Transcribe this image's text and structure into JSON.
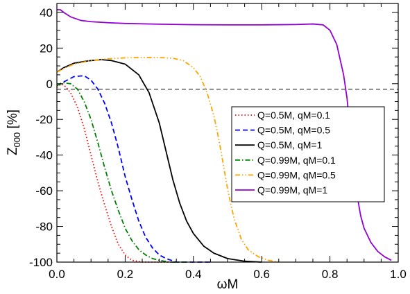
{
  "chart_data": {
    "type": "line",
    "title": "",
    "xlabel": "ωM",
    "ylabel": {
      "main": "Z",
      "sub": "000",
      "unit": " [%]"
    },
    "xlim": [
      0.0,
      1.0
    ],
    "ylim": [
      -100,
      45
    ],
    "x_ticks": [
      0.0,
      0.2,
      0.4,
      0.6,
      0.8,
      1.0
    ],
    "x_tick_labels": [
      "0.0",
      "0.2",
      "0.4",
      "0.6",
      "0.8",
      "1.0"
    ],
    "y_ticks": [
      40,
      20,
      0,
      -20,
      -40,
      -60,
      -80,
      -100
    ],
    "y_tick_labels": [
      "40",
      "20",
      "0",
      "-20",
      "-40",
      "-60",
      "-80",
      "-100"
    ],
    "grid": false,
    "legend_position": "center-right",
    "reference_line": {
      "y": -3,
      "style": "dashed",
      "color": "#000000"
    },
    "series": [
      {
        "name": "Q=0.5M, qM=0.1",
        "color": "#ff0000",
        "dash": "dotted",
        "x": [
          0.0,
          0.01,
          0.02,
          0.04,
          0.06,
          0.08,
          0.1,
          0.12,
          0.14,
          0.16,
          0.18,
          0.2,
          0.22,
          0.25,
          0.3,
          0.35
        ],
        "y": [
          -2,
          -0.5,
          -0.5,
          -5,
          -13,
          -25,
          -40,
          -55,
          -68,
          -80,
          -90,
          -96,
          -99,
          -100,
          -100,
          -100
        ]
      },
      {
        "name": "Q=0.5M, qM=0.5",
        "color": "#0000ff",
        "dash": "dashed",
        "x": [
          0.0,
          0.02,
          0.05,
          0.08,
          0.1,
          0.12,
          0.14,
          0.16,
          0.18,
          0.2,
          0.22,
          0.24,
          0.26,
          0.28,
          0.3,
          0.32,
          0.35,
          0.4,
          0.45
        ],
        "y": [
          -1,
          1,
          4,
          4.5,
          2,
          -3,
          -11,
          -22,
          -36,
          -52,
          -65,
          -77,
          -86,
          -92,
          -96,
          -98,
          -100,
          -100,
          -100
        ]
      },
      {
        "name": "Q=0.5M, qM=1",
        "color": "#000000",
        "dash": "solid",
        "x": [
          0.0,
          0.02,
          0.05,
          0.08,
          0.1,
          0.13,
          0.16,
          0.2,
          0.24,
          0.27,
          0.3,
          0.32,
          0.34,
          0.36,
          0.38,
          0.4,
          0.43,
          0.46,
          0.5,
          0.55,
          0.6
        ],
        "y": [
          6.5,
          9,
          11.5,
          12.5,
          13,
          13.5,
          13,
          11,
          5,
          -5,
          -22,
          -38,
          -54,
          -67,
          -77,
          -84,
          -91,
          -95,
          -98,
          -99.5,
          -100
        ]
      },
      {
        "name": "Q=0.99M, qM=0.1",
        "color": "#008000",
        "dash": "dashdot",
        "x": [
          0.0,
          0.02,
          0.04,
          0.06,
          0.08,
          0.1,
          0.12,
          0.14,
          0.16,
          0.18,
          0.2,
          0.22,
          0.24,
          0.26,
          0.28,
          0.3,
          0.33,
          0.38
        ],
        "y": [
          -1,
          0.5,
          0,
          -3,
          -10,
          -20,
          -33,
          -47,
          -60,
          -71,
          -81,
          -88,
          -93,
          -96,
          -98,
          -99,
          -100,
          -100
        ]
      },
      {
        "name": "Q=0.99M, qM=0.5",
        "color": "#ffa500",
        "dash": "dashdotdot",
        "x": [
          0.0,
          0.02,
          0.05,
          0.1,
          0.15,
          0.2,
          0.25,
          0.3,
          0.34,
          0.37,
          0.4,
          0.42,
          0.44,
          0.46,
          0.47,
          0.48,
          0.49,
          0.5,
          0.51,
          0.52,
          0.54,
          0.56,
          0.59,
          0.62,
          0.65
        ],
        "y": [
          6.5,
          8.5,
          11,
          13,
          14,
          14.5,
          14.7,
          14.7,
          14.3,
          13,
          9,
          4,
          -5,
          -18,
          -27,
          -37,
          -48,
          -59,
          -68,
          -76,
          -87,
          -93,
          -97,
          -99,
          -100
        ]
      },
      {
        "name": "Q=0.99M, qM=1",
        "color": "#9400d3",
        "dash": "solid",
        "x": [
          0.0,
          0.01,
          0.02,
          0.04,
          0.07,
          0.1,
          0.15,
          0.2,
          0.3,
          0.4,
          0.5,
          0.6,
          0.7,
          0.75,
          0.78,
          0.8,
          0.82,
          0.84,
          0.85,
          0.86,
          0.87,
          0.88,
          0.89,
          0.9,
          0.92,
          0.94,
          0.96,
          0.98
        ],
        "y": [
          41.5,
          41.5,
          40,
          37.5,
          35.5,
          34.8,
          34.2,
          33.8,
          33.4,
          33.1,
          33,
          33,
          33.2,
          33.5,
          33,
          30,
          22,
          5,
          -8,
          -28,
          -48,
          -63,
          -74,
          -81,
          -89,
          -94,
          -97,
          -99
        ]
      }
    ]
  }
}
